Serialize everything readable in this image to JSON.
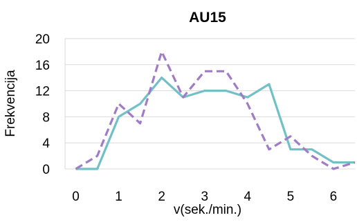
{
  "chart_data": {
    "type": "line",
    "title": "AU15",
    "xlabel": "v(sek./min.)",
    "ylabel": "Frekvencija",
    "xlim": [
      -0.25,
      6.5
    ],
    "ylim": [
      0,
      20
    ],
    "x_ticks": [
      "0",
      "1",
      "2",
      "3",
      "4",
      "5",
      "6"
    ],
    "y_ticks": [
      "0",
      "4",
      "8",
      "12",
      "16",
      "20"
    ],
    "grid": true,
    "legend": "none",
    "series": [
      {
        "color": "#72bfc6",
        "style": "solid",
        "points": [
          [
            0,
            0
          ],
          [
            0.5,
            0
          ],
          [
            1,
            8
          ],
          [
            1.5,
            10
          ],
          [
            2,
            14
          ],
          [
            2.5,
            11
          ],
          [
            3,
            12
          ],
          [
            3.5,
            12
          ],
          [
            4,
            11
          ],
          [
            4.5,
            13
          ],
          [
            5,
            3
          ],
          [
            5.5,
            3
          ],
          [
            6,
            1
          ],
          [
            6.5,
            1
          ]
        ]
      },
      {
        "color": "#a07cc6",
        "style": "dashed",
        "points": [
          [
            0,
            0
          ],
          [
            0.5,
            2
          ],
          [
            1,
            10
          ],
          [
            1.5,
            7
          ],
          [
            2,
            18
          ],
          [
            2.5,
            11
          ],
          [
            3,
            15
          ],
          [
            3.5,
            15
          ],
          [
            4,
            10
          ],
          [
            4.5,
            3
          ],
          [
            5,
            5
          ],
          [
            5.5,
            2
          ],
          [
            6,
            0
          ],
          [
            6.5,
            1
          ]
        ]
      }
    ]
  }
}
